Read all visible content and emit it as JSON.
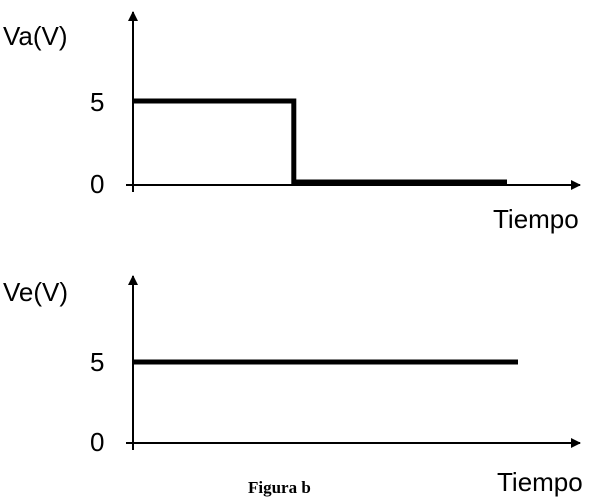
{
  "caption": "Figura b",
  "chart_data": [
    {
      "type": "line",
      "ylabel": "Va(V)",
      "xlabel": "Tiempo",
      "yticks": [
        0,
        5
      ],
      "ylim": [
        0,
        5
      ],
      "xlim": [
        0,
        1
      ],
      "series": [
        {
          "x": [
            0,
            0.43,
            0.43,
            1
          ],
          "y": [
            5,
            5,
            0,
            0
          ]
        }
      ]
    },
    {
      "type": "line",
      "ylabel": "Ve(V)",
      "xlabel": "Tiempo",
      "yticks": [
        0,
        5
      ],
      "ylim": [
        0,
        5
      ],
      "xlim": [
        0,
        1
      ],
      "series": [
        {
          "x": [
            0,
            1
          ],
          "y": [
            5,
            5
          ]
        }
      ]
    }
  ]
}
